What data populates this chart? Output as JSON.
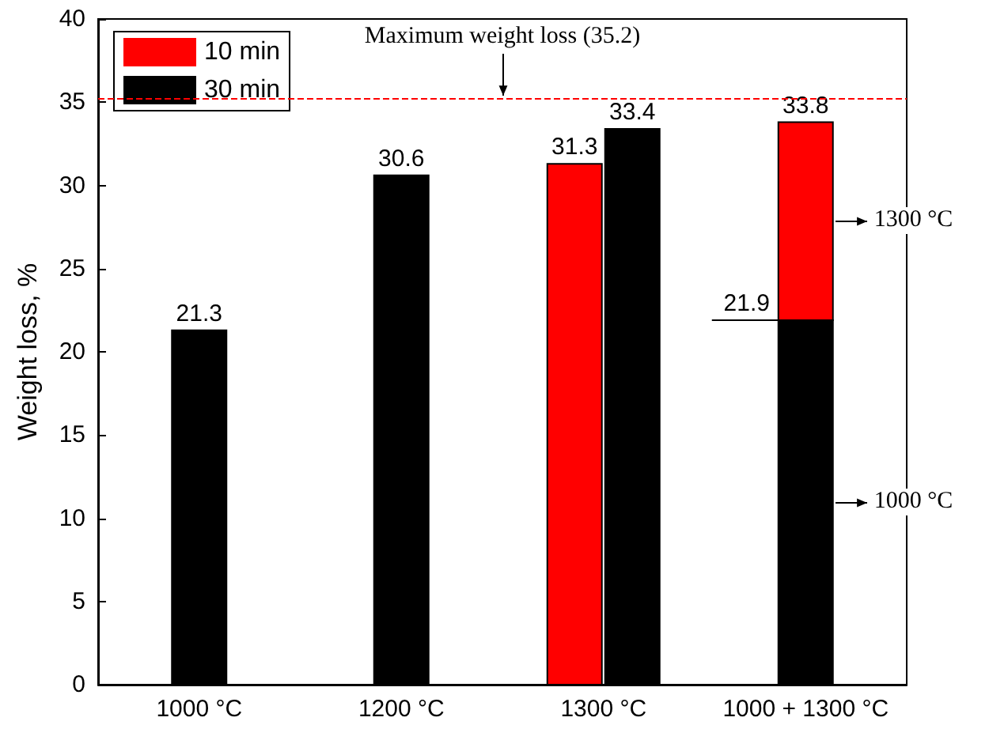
{
  "chart_data": {
    "type": "bar",
    "ylabel": "Weight loss, %",
    "categories": [
      "1000 °C",
      "1200 °C",
      "1300 °C",
      "1000 + 1300 °C"
    ],
    "series": [
      {
        "name": "10 min",
        "color": "#ff0000",
        "values": [
          null,
          null,
          31.3,
          11.9
        ],
        "base": [
          null,
          null,
          null,
          21.9
        ],
        "value_labels": [
          null,
          null,
          "31.3",
          "33.8"
        ]
      },
      {
        "name": "30 min",
        "color": "#000000",
        "values": [
          21.3,
          30.6,
          33.4,
          21.9
        ],
        "value_labels": [
          "21.3",
          "30.6",
          "33.4",
          "21.9"
        ]
      }
    ],
    "ylim": [
      0,
      40
    ],
    "yticks": [
      0,
      5,
      10,
      15,
      20,
      25,
      30,
      35,
      40
    ],
    "grid": false,
    "legend": "top left",
    "ref_lines": [
      {
        "axis": "y",
        "value": 35.2,
        "label": "Maximum weight loss (35.2)",
        "color": "#ff0000",
        "line_style": "dashed"
      }
    ],
    "annotations": [
      "1300 °C",
      "1000 °C"
    ]
  }
}
